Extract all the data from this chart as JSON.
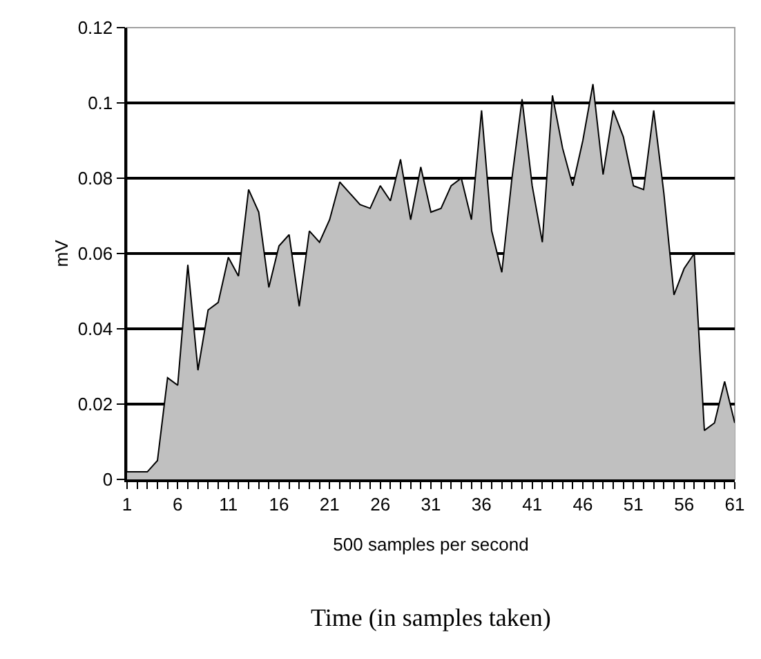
{
  "chart_data": {
    "type": "area",
    "x": [
      1,
      2,
      3,
      4,
      5,
      6,
      7,
      8,
      9,
      10,
      11,
      12,
      13,
      14,
      15,
      16,
      17,
      18,
      19,
      20,
      21,
      22,
      23,
      24,
      25,
      26,
      27,
      28,
      29,
      30,
      31,
      32,
      33,
      34,
      35,
      36,
      37,
      38,
      39,
      40,
      41,
      42,
      43,
      44,
      45,
      46,
      47,
      48,
      49,
      50,
      51,
      52,
      53,
      54,
      55,
      56,
      57,
      58,
      59,
      60,
      61
    ],
    "series": [
      {
        "color": "#c0c0c0",
        "values": [
          0.002,
          0.002,
          0.002,
          0.005,
          0.027,
          0.025,
          0.057,
          0.029,
          0.045,
          0.047,
          0.059,
          0.054,
          0.077,
          0.071,
          0.051,
          0.062,
          0.065,
          0.046,
          0.066,
          0.063,
          0.069,
          0.079,
          0.076,
          0.073,
          0.072,
          0.078,
          0.074,
          0.085,
          0.069,
          0.083,
          0.071,
          0.072,
          0.078,
          0.08,
          0.069,
          0.098,
          0.066,
          0.055,
          0.08,
          0.101,
          0.078,
          0.063,
          0.102,
          0.088,
          0.078,
          0.09,
          0.105,
          0.081,
          0.098,
          0.091,
          0.078,
          0.077,
          0.098,
          0.076,
          0.049,
          0.056,
          0.06,
          0.013,
          0.015,
          0.026,
          0.015
        ]
      }
    ],
    "xlim": [
      1,
      61
    ],
    "xticks": [
      1,
      {
        "value": 2,
        "label": null
      },
      {
        "value": 3,
        "label": null
      },
      {
        "value": 4,
        "label": null
      },
      {
        "value": 5,
        "label": null
      },
      6,
      {
        "value": 7,
        "label": null
      },
      {
        "value": 8,
        "label": null
      },
      {
        "value": 9,
        "label": null
      },
      {
        "value": 10,
        "label": null
      },
      11,
      {
        "value": 12,
        "label": null
      },
      {
        "value": 13,
        "label": null
      },
      {
        "value": 14,
        "label": null
      },
      {
        "value": 15,
        "label": null
      },
      16,
      {
        "value": 17,
        "label": null
      },
      {
        "value": 18,
        "label": null
      },
      {
        "value": 19,
        "label": null
      },
      {
        "value": 20,
        "label": null
      },
      21,
      {
        "value": 22,
        "label": null
      },
      {
        "value": 23,
        "label": null
      },
      {
        "value": 24,
        "label": null
      },
      {
        "value": 25,
        "label": null
      },
      26,
      {
        "value": 27,
        "label": null
      },
      {
        "value": 28,
        "label": null
      },
      {
        "value": 29,
        "label": null
      },
      {
        "value": 30,
        "label": null
      },
      31,
      {
        "value": 32,
        "label": null
      },
      {
        "value": 33,
        "label": null
      },
      {
        "value": 34,
        "label": null
      },
      {
        "value": 35,
        "label": null
      },
      36,
      {
        "value": 37,
        "label": null
      },
      {
        "value": 38,
        "label": null
      },
      {
        "value": 39,
        "label": null
      },
      {
        "value": 40,
        "label": null
      },
      41,
      {
        "value": 42,
        "label": null
      },
      {
        "value": 43,
        "label": null
      },
      {
        "value": 44,
        "label": null
      },
      {
        "value": 45,
        "label": null
      },
      46,
      {
        "value": 47,
        "label": null
      },
      {
        "value": 48,
        "label": null
      },
      {
        "value": 49,
        "label": null
      },
      {
        "value": 50,
        "label": null
      },
      51,
      {
        "value": 52,
        "label": null
      },
      {
        "value": 53,
        "label": null
      },
      {
        "value": 54,
        "label": null
      },
      {
        "value": 55,
        "label": null
      },
      56,
      {
        "value": 57,
        "label": null
      },
      {
        "value": 58,
        "label": null
      },
      {
        "value": 59,
        "label": null
      },
      {
        "value": 60,
        "label": null
      },
      61
    ],
    "ylim": [
      0,
      0.12
    ],
    "yticks": [
      0,
      0.02,
      0.04,
      0.06,
      0.08,
      0.1,
      0.12
    ],
    "grid": "y",
    "xlabel": "500 samples per second",
    "ylabel": "mV",
    "annotations": [
      "Time (in samples taken)"
    ]
  }
}
